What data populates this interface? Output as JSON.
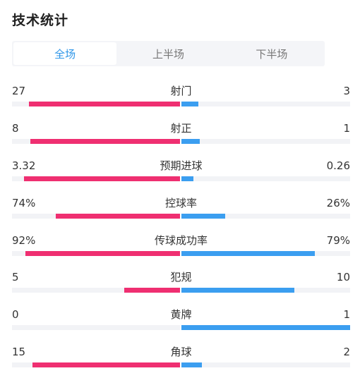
{
  "title": "技术统计",
  "colors": {
    "home": "#ef2f71",
    "away": "#3b9ef0",
    "active_tab": "#2d95e8"
  },
  "tabs": [
    {
      "label": "全场",
      "active": true
    },
    {
      "label": "上半场",
      "active": false
    },
    {
      "label": "下半场",
      "active": false
    }
  ],
  "stats": [
    {
      "label": "射门",
      "home": "27",
      "away": "3",
      "home_fill": 0.9,
      "away_fill": 0.1
    },
    {
      "label": "射正",
      "home": "8",
      "away": "1",
      "home_fill": 0.89,
      "away_fill": 0.11
    },
    {
      "label": "预期进球",
      "home": "3.32",
      "away": "0.26",
      "home_fill": 0.93,
      "away_fill": 0.07
    },
    {
      "label": "控球率",
      "home": "74%",
      "away": "26%",
      "home_fill": 0.74,
      "away_fill": 0.26
    },
    {
      "label": "传球成功率",
      "home": "92%",
      "away": "79%",
      "home_fill": 0.92,
      "away_fill": 0.79
    },
    {
      "label": "犯规",
      "home": "5",
      "away": "10",
      "home_fill": 0.33,
      "away_fill": 0.67
    },
    {
      "label": "黄牌",
      "home": "0",
      "away": "1",
      "home_fill": 0.0,
      "away_fill": 1.0
    },
    {
      "label": "角球",
      "home": "15",
      "away": "2",
      "home_fill": 0.88,
      "away_fill": 0.12
    }
  ]
}
